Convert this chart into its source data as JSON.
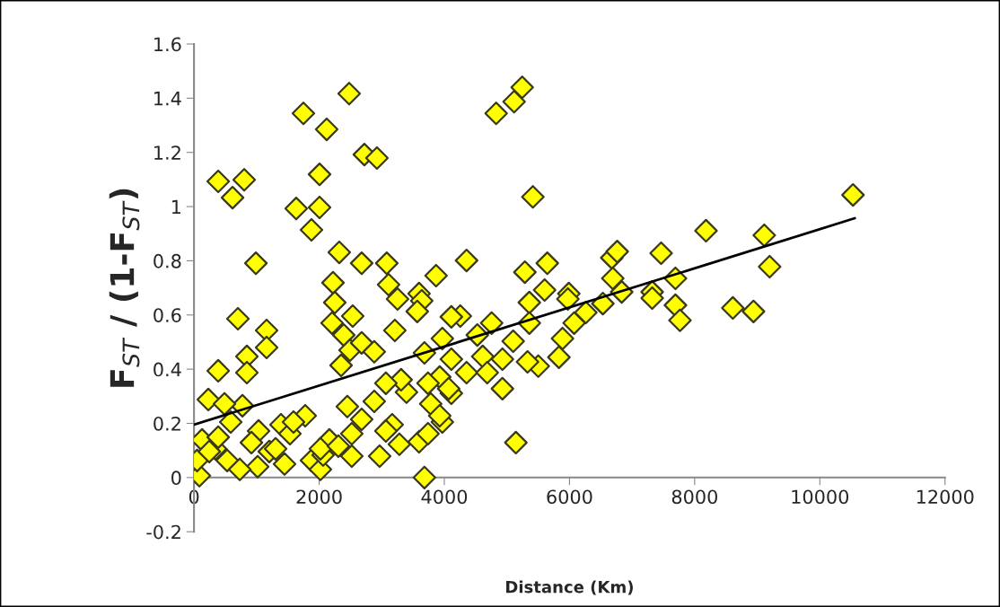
{
  "chart_data": {
    "type": "scatter",
    "xlabel": "Distance (Km)",
    "ylabel": "F$_{ST}$ / (1-F$_{ST}$)",
    "xlim": [
      0,
      12000
    ],
    "xticks": [
      0,
      2000,
      4000,
      6000,
      8000,
      10000,
      12000
    ],
    "ylim": [
      -0.2,
      1.6
    ],
    "yticks": [
      -0.2,
      0,
      0.2,
      0.4,
      0.6,
      0.8,
      1,
      1.2,
      1.4,
      1.6
    ],
    "marker": "diamond",
    "grid": false,
    "legend": false,
    "series": [
      {
        "color": "#ffff00",
        "x": [
          2479,
          1748,
          2120,
          2722,
          2923,
          2006,
          387,
          802,
          616,
          1633,
          2006,
          1877,
          989,
          2321,
          2679,
          3080,
          3868,
          2221,
          3109,
          3596,
          5244,
          5115,
          4828,
          5415,
          4355,
          5287,
          5645,
          6676,
          6762,
          7464,
          8181,
          7693,
          6691,
          5602,
          5989,
          7321,
          10530,
          9112,
          9198,
          8610,
          8940,
          4255,
          4756,
          4527,
          5100,
          5358,
          5974,
          5358,
          6074,
          6533,
          6834,
          7321,
          7693,
          7765,
          6261,
          5888,
          5831,
          5501,
          5329,
          4928,
          4613,
          4355,
          4685,
          4112,
          4112,
          3926,
          4928,
          3968,
          5143,
          702,
          1160,
          1160,
          845,
          845,
          387,
          229,
          774,
          487,
          587,
          129,
          344,
          86,
          50,
          530,
          1017,
          1203,
          1447,
          1032,
          1390,
          1777,
          1533,
          1877,
          2020,
          2063,
          2163,
          2521,
          2521,
          2450,
          2966,
          2880,
          3166,
          3281,
          3596,
          3682,
          3782,
          3395,
          3739,
          4069,
          3309,
          3066,
          3209,
          3682,
          3968,
          3639,
          3252,
          2249,
          2206,
          2536,
          2392,
          2493,
          2350,
          2679,
          2880,
          3567,
          4112,
          1590,
          1304,
          2020,
          2307,
          2679,
          3066,
          3739,
          3926,
          244,
          731,
          917,
          387
        ],
        "values": [
          1.417,
          1.344,
          1.285,
          1.192,
          1.179,
          1.119,
          1.093,
          1.099,
          1.033,
          0.993,
          0.997,
          0.914,
          0.791,
          0.831,
          0.791,
          0.791,
          0.745,
          0.719,
          0.712,
          0.679,
          1.44,
          1.387,
          1.344,
          1.036,
          0.801,
          0.758,
          0.791,
          0.811,
          0.834,
          0.828,
          0.911,
          0.735,
          0.735,
          0.692,
          0.679,
          0.685,
          1.043,
          0.894,
          0.778,
          0.626,
          0.613,
          0.596,
          0.57,
          0.526,
          0.503,
          0.646,
          0.659,
          0.57,
          0.57,
          0.642,
          0.685,
          0.662,
          0.636,
          0.58,
          0.609,
          0.513,
          0.444,
          0.411,
          0.427,
          0.437,
          0.447,
          0.387,
          0.387,
          0.437,
          0.311,
          0.371,
          0.328,
          0.205,
          0.129,
          0.586,
          0.543,
          0.48,
          0.447,
          0.387,
          0.394,
          0.288,
          0.265,
          0.272,
          0.205,
          0.139,
          0.106,
          0.007,
          0.063,
          0.063,
          0.04,
          0.096,
          0.05,
          0.172,
          0.195,
          0.228,
          0.162,
          0.063,
          0.03,
          0.083,
          0.139,
          0.079,
          0.162,
          0.262,
          0.079,
          0.281,
          0.195,
          0.123,
          0.132,
          0,
          0.272,
          0.315,
          0.348,
          0.328,
          0.361,
          0.348,
          0.543,
          0.46,
          0.513,
          0.652,
          0.659,
          0.646,
          0.57,
          0.596,
          0.526,
          0.47,
          0.414,
          0.497,
          0.464,
          0.613,
          0.593,
          0.205,
          0.106,
          0.106,
          0.116,
          0.215,
          0.172,
          0.162,
          0.228,
          0.096,
          0.03,
          0.129,
          0.149
        ]
      },
      {
        "type": "line",
        "color": "#000000",
        "marker": "none",
        "line_style": "solid",
        "x": [
          0,
          10559
        ],
        "values": [
          0.195,
          0.957
        ]
      }
    ]
  }
}
